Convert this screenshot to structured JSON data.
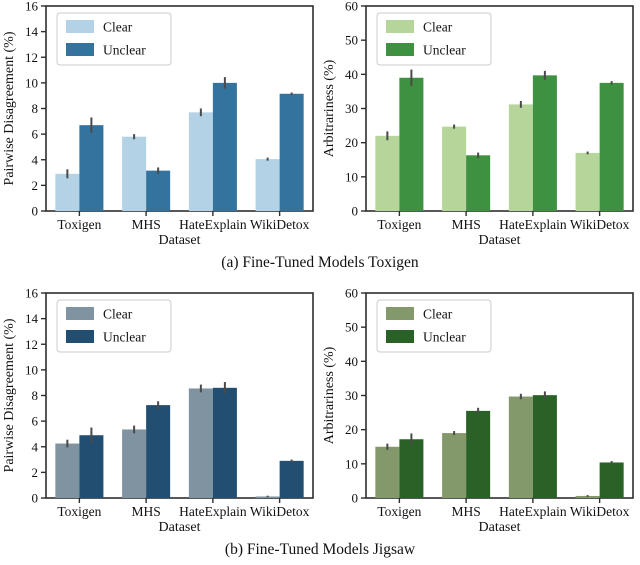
{
  "figure": {
    "captions": {
      "a": "(a) Fine-Tuned Models Toxigen",
      "b": "(b) Fine-Tuned Models Jigsaw"
    }
  },
  "chart_data": [
    {
      "id": "pairwise-disagreement-toxigen",
      "type": "bar",
      "title": "",
      "xlabel": "Dataset",
      "ylabel": "Pairwise Disagreement (%)",
      "ylim": [
        0,
        16
      ],
      "yticks": [
        0,
        2,
        4,
        6,
        8,
        10,
        12,
        14,
        16
      ],
      "categories": [
        "Toxigen",
        "MHS",
        "HateExplain",
        "WikiDetox"
      ],
      "legend_position": "upper left",
      "grid": false,
      "series": [
        {
          "name": "Clear",
          "color": "#b3d2e5",
          "values": [
            2.9,
            5.8,
            7.7,
            4.05
          ],
          "errors": [
            0.35,
            0.2,
            0.3,
            0.12
          ]
        },
        {
          "name": "Unclear",
          "color": "#35739f",
          "values": [
            6.7,
            3.15,
            10.0,
            9.15
          ],
          "errors": [
            0.6,
            0.25,
            0.45,
            0.1
          ]
        }
      ]
    },
    {
      "id": "arbitrariness-toxigen",
      "type": "bar",
      "title": "",
      "xlabel": "Dataset",
      "ylabel": "Arbitrariness (%)",
      "ylim": [
        0,
        60
      ],
      "yticks": [
        0,
        10,
        20,
        30,
        40,
        50,
        60
      ],
      "categories": [
        "Toxigen",
        "MHS",
        "HateExplain",
        "WikiDetox"
      ],
      "legend_position": "upper left",
      "grid": false,
      "series": [
        {
          "name": "Clear",
          "color": "#b6d59b",
          "values": [
            22.0,
            24.7,
            31.2,
            17.0
          ],
          "errors": [
            1.3,
            0.6,
            1.0,
            0.4
          ]
        },
        {
          "name": "Unclear",
          "color": "#3d9140",
          "values": [
            39.0,
            16.3,
            39.7,
            37.5
          ],
          "errors": [
            2.4,
            0.8,
            1.3,
            0.5
          ]
        }
      ]
    },
    {
      "id": "pairwise-disagreement-jigsaw",
      "type": "bar",
      "title": "",
      "xlabel": "Dataset",
      "ylabel": "Pairwise Disagreement (%)",
      "ylim": [
        0,
        16
      ],
      "yticks": [
        0,
        2,
        4,
        6,
        8,
        10,
        12,
        14,
        16
      ],
      "categories": [
        "Toxigen",
        "MHS",
        "HateExplain",
        "WikiDetox"
      ],
      "legend_position": "upper left",
      "grid": false,
      "series": [
        {
          "name": "Clear",
          "color": "#7f93a0",
          "values": [
            4.25,
            5.35,
            8.55,
            0.12
          ],
          "errors": [
            0.3,
            0.3,
            0.3,
            0.06
          ]
        },
        {
          "name": "Unclear",
          "color": "#224e72",
          "values": [
            4.9,
            7.25,
            8.6,
            2.9
          ],
          "errors": [
            0.6,
            0.3,
            0.45,
            0.1
          ]
        }
      ]
    },
    {
      "id": "arbitrariness-jigsaw",
      "type": "bar",
      "title": "",
      "xlabel": "Dataset",
      "ylabel": "Arbitrariness (%)",
      "ylim": [
        0,
        60
      ],
      "yticks": [
        0,
        10,
        20,
        30,
        40,
        50,
        60
      ],
      "categories": [
        "Toxigen",
        "MHS",
        "HateExplain",
        "WikiDetox"
      ],
      "legend_position": "upper left",
      "grid": false,
      "series": [
        {
          "name": "Clear",
          "color": "#84996b",
          "values": [
            15.0,
            19.0,
            29.7,
            0.6
          ],
          "errors": [
            0.9,
            0.6,
            0.8,
            0.25
          ]
        },
        {
          "name": "Unclear",
          "color": "#2a6127",
          "values": [
            17.2,
            25.5,
            30.1,
            10.4
          ],
          "errors": [
            1.7,
            0.9,
            1.1,
            0.4
          ]
        }
      ]
    }
  ]
}
